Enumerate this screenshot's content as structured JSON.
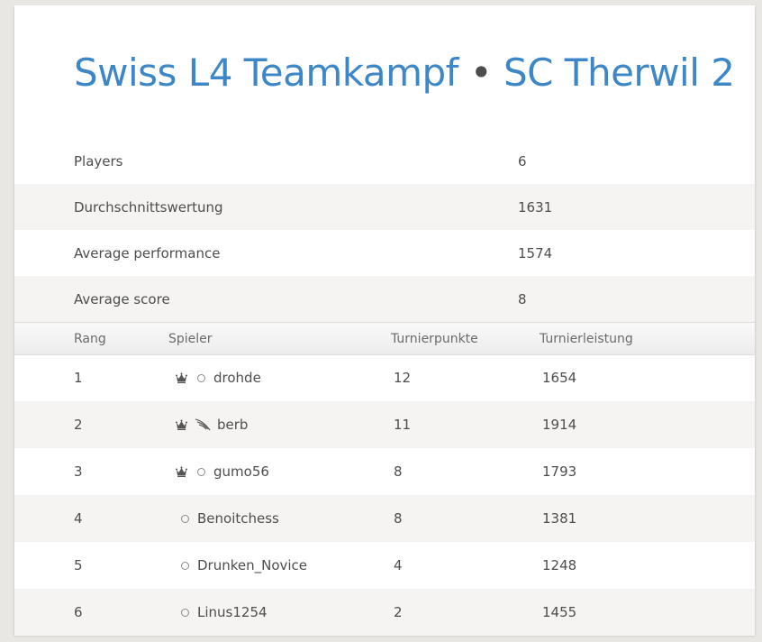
{
  "page": {
    "title_team": "Swiss L4 Teamkampf",
    "title_separator": "•",
    "title_club": "SC Therwil 2"
  },
  "stats": [
    {
      "label": "Players",
      "value": "6"
    },
    {
      "label": "Durchschnittswertung",
      "value": "1631"
    },
    {
      "label": "Average performance",
      "value": "1574"
    },
    {
      "label": "Average score",
      "value": "8"
    }
  ],
  "table": {
    "headers": {
      "rank": "Rang",
      "player": "Spieler",
      "score": "Turnierpunkte",
      "performance": "Turnierleistung"
    },
    "rows": [
      {
        "rank": "1",
        "player": "drohde",
        "score": "12",
        "performance": "1654",
        "leader": true,
        "status_icon": "circle-icon"
      },
      {
        "rank": "2",
        "player": "berb",
        "score": "11",
        "performance": "1914",
        "leader": true,
        "status_icon": "wing-icon"
      },
      {
        "rank": "3",
        "player": "gumo56",
        "score": "8",
        "performance": "1793",
        "leader": true,
        "status_icon": "circle-icon"
      },
      {
        "rank": "4",
        "player": "Benoitchess",
        "score": "8",
        "performance": "1381",
        "leader": false,
        "status_icon": "circle-icon"
      },
      {
        "rank": "5",
        "player": "Drunken_Novice",
        "score": "4",
        "performance": "1248",
        "leader": false,
        "status_icon": "circle-icon"
      },
      {
        "rank": "6",
        "player": "Linus1254",
        "score": "2",
        "performance": "1455",
        "leader": false,
        "status_icon": "circle-icon"
      }
    ]
  },
  "colors": {
    "accent": "#3d87c8",
    "text": "#4d4d4d",
    "stripe": "#f5f4f2"
  }
}
